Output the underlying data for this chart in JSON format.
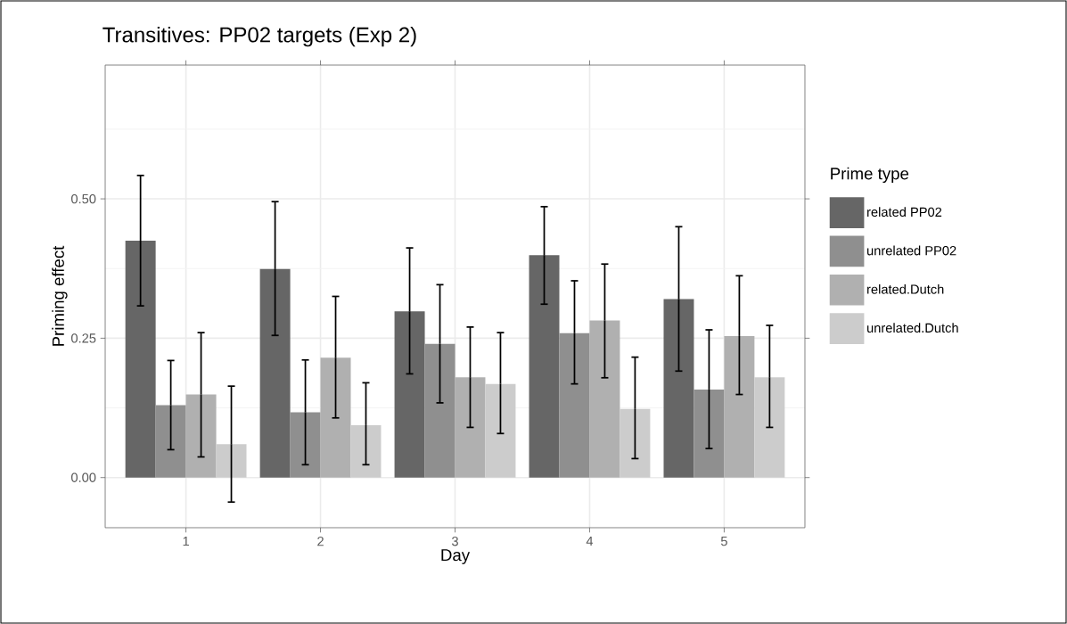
{
  "chart_data": {
    "type": "bar",
    "title": "Transitives: PP02 targets (Exp 2)",
    "xlabel": "Day",
    "ylabel": "Priming effect",
    "legend_title": "Prime type",
    "categories": [
      "1",
      "2",
      "3",
      "4",
      "5"
    ],
    "series": [
      {
        "name": "related PP02",
        "color": "#666666",
        "values": [
          0.425,
          0.374,
          0.298,
          0.399,
          0.32
        ],
        "errors": [
          [
            0.308,
            0.542
          ],
          [
            0.255,
            0.495
          ],
          [
            0.186,
            0.412
          ],
          [
            0.311,
            0.486
          ],
          [
            0.191,
            0.45
          ]
        ]
      },
      {
        "name": "unrelated PP02",
        "color": "#8f8f8f",
        "values": [
          0.13,
          0.117,
          0.24,
          0.259,
          0.158
        ],
        "errors": [
          [
            0.05,
            0.21
          ],
          [
            0.023,
            0.211
          ],
          [
            0.134,
            0.346
          ],
          [
            0.168,
            0.353
          ],
          [
            0.052,
            0.265
          ]
        ]
      },
      {
        "name": "related.Dutch",
        "color": "#b0b0b0",
        "values": [
          0.149,
          0.215,
          0.18,
          0.282,
          0.254
        ],
        "errors": [
          [
            0.037,
            0.26
          ],
          [
            0.107,
            0.325
          ],
          [
            0.09,
            0.27
          ],
          [
            0.179,
            0.383
          ],
          [
            0.149,
            0.362
          ]
        ]
      },
      {
        "name": "unrelated.Dutch",
        "color": "#cccccc",
        "values": [
          0.06,
          0.094,
          0.168,
          0.123,
          0.18
        ],
        "errors": [
          [
            -0.044,
            0.164
          ],
          [
            0.023,
            0.17
          ],
          [
            0.079,
            0.26
          ],
          [
            0.034,
            0.216
          ],
          [
            0.09,
            0.273
          ]
        ]
      }
    ],
    "ylim": [
      -0.09,
      0.74
    ],
    "yticks": [
      {
        "value": 0,
        "label": "0.00"
      },
      {
        "value": 0.25,
        "label": "0.25"
      },
      {
        "value": 0.5,
        "label": "0.50"
      }
    ],
    "grid": true,
    "legend": "right"
  }
}
